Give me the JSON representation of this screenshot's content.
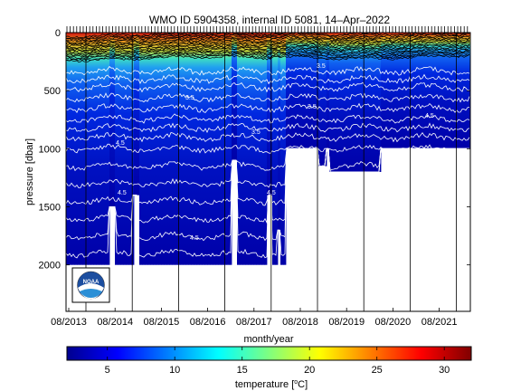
{
  "chart_data": {
    "type": "heatmap",
    "title": "WMO ID 5904358, internal ID 5081, 14–Apr–2022",
    "xlabel": "month/year",
    "ylabel": "pressure [dbar]",
    "x_ticks": [
      "08/2013",
      "08/2014",
      "08/2015",
      "08/2016",
      "08/2017",
      "08/2018",
      "08/2019",
      "08/2020",
      "08/2021"
    ],
    "y_ticks": [
      "0",
      "500",
      "1000",
      "1500",
      "2000"
    ],
    "ylim": [
      2400,
      0
    ],
    "y_reversed": true,
    "colorbar": {
      "label": "temperature [°C]",
      "label_main": "temperature [",
      "label_unit": "o",
      "label_tail": "C]",
      "range": [
        2,
        32
      ],
      "ticks": [
        "5",
        "10",
        "15",
        "20",
        "25",
        "30"
      ],
      "colormap": "jet"
    },
    "contour_labels": [
      "4.5",
      "4.5",
      "4.5",
      "4.5",
      "3.5",
      "3.5",
      "3.5",
      "3.5",
      "4.5"
    ],
    "logo": "NOAA"
  }
}
